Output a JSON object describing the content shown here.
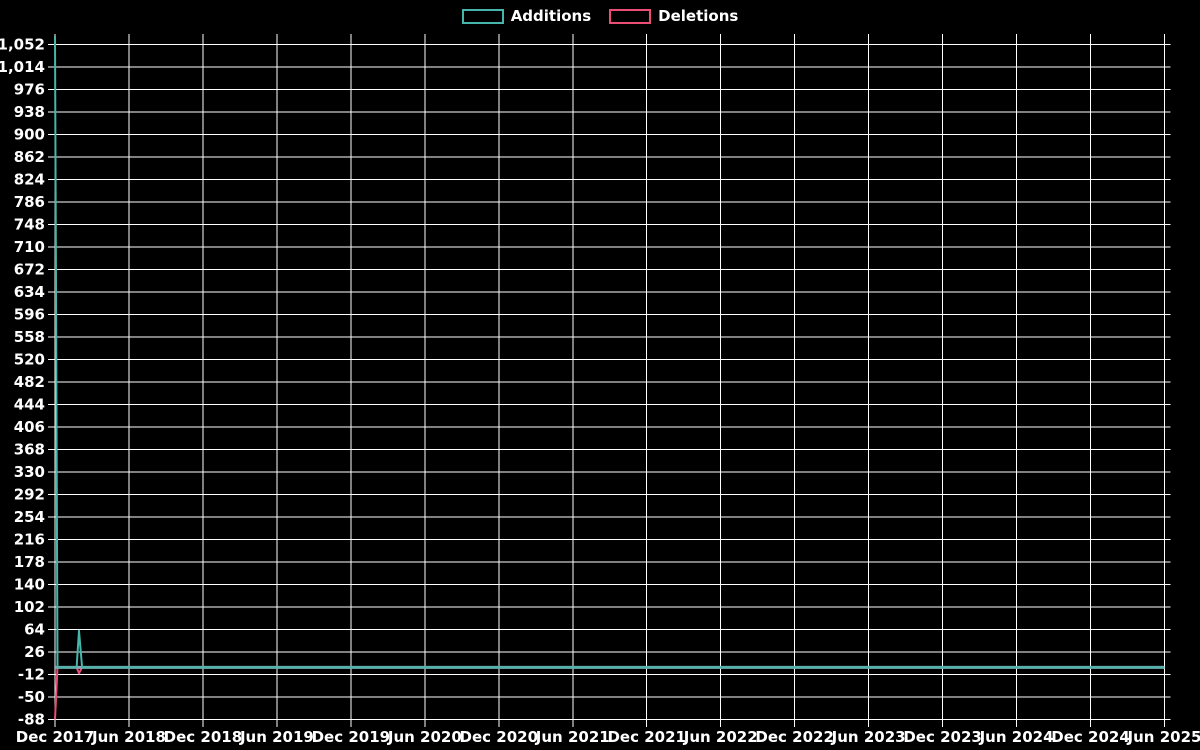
{
  "page": {
    "background": "#000000",
    "text_color": "#ffffff"
  },
  "legend": {
    "items": [
      {
        "label": "Additions",
        "color": "#46b5ab"
      },
      {
        "label": "Deletions",
        "color": "#ec4d74"
      }
    ]
  },
  "chart_data": {
    "type": "line",
    "title": "",
    "xlabel": "",
    "ylabel": "",
    "background": "#000000",
    "grid": true,
    "grid_color": "#ffffff",
    "zero_axis_color": "#93a8b4",
    "legend_position": "top-center",
    "y_axis": {
      "min": -88,
      "max": 1070,
      "interval": 38
    },
    "y_tick_labels": [
      "1,052",
      "1,014",
      "976",
      "938",
      "900",
      "862",
      "824",
      "786",
      "748",
      "710",
      "672",
      "634",
      "596",
      "558",
      "520",
      "482",
      "444",
      "406",
      "368",
      "330",
      "292",
      "254",
      "216",
      "178",
      "140",
      "102",
      "64",
      "26",
      "-12",
      "-50",
      "-88"
    ],
    "y_tick_values": [
      1052,
      1014,
      976,
      938,
      900,
      862,
      824,
      786,
      748,
      710,
      672,
      634,
      596,
      558,
      520,
      482,
      444,
      406,
      368,
      330,
      292,
      254,
      216,
      178,
      140,
      102,
      64,
      26,
      -12,
      -50,
      -88
    ],
    "x_tick_labels": [
      "Dec 2017",
      "Jun 2018",
      "Dec 2018",
      "Jun 2019",
      "Dec 2019",
      "Jun 2020",
      "Dec 2020",
      "Jun 2021",
      "Dec 2021",
      "Jun 2022",
      "Dec 2022",
      "Jun 2023",
      "Dec 2023",
      "Jun 2024",
      "Dec 2024",
      "Jun 2025"
    ],
    "x_tick_months": [
      0,
      6,
      12,
      18,
      24,
      30,
      36,
      42,
      48,
      54,
      60,
      66,
      72,
      78,
      84,
      90
    ],
    "x_range_months": [
      0,
      90
    ],
    "series": [
      {
        "name": "Deletions",
        "color": "#ec4d74",
        "points": [
          [
            0,
            -88
          ],
          [
            0.2,
            0
          ],
          [
            1.75,
            0
          ],
          [
            1.95,
            -10
          ],
          [
            2.2,
            0
          ],
          [
            90,
            0
          ]
        ]
      },
      {
        "name": "Additions",
        "color": "#46b5ab",
        "points": [
          [
            0,
            1066
          ],
          [
            0.2,
            0
          ],
          [
            1.75,
            0
          ],
          [
            1.95,
            62
          ],
          [
            2.2,
            0
          ],
          [
            90,
            0
          ]
        ]
      }
    ],
    "annotations": {
      "peak_additions": 1066,
      "peak_deletions": -88,
      "peak_week": "Dec 2017"
    }
  }
}
